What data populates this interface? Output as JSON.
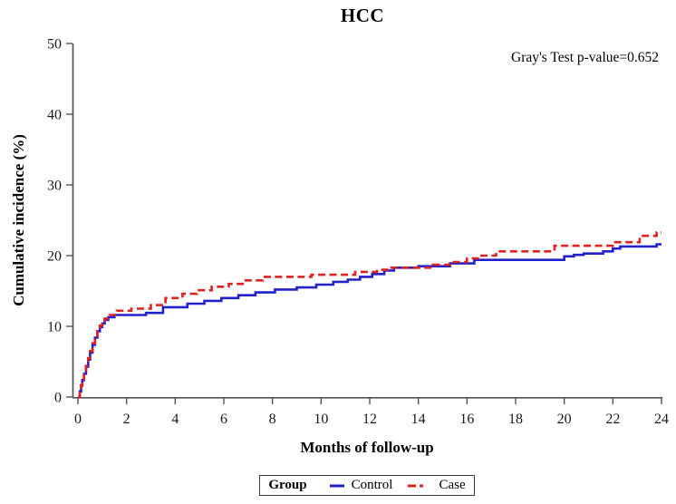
{
  "chart": {
    "title": "HCC",
    "annotation": "Gray's Test p-value=0.652"
  },
  "legend": {
    "title": "Group",
    "items": [
      "Control",
      "Case"
    ]
  },
  "chart_data": {
    "type": "line",
    "subtype": "step-function-cumulative-incidence",
    "title": "HCC",
    "xlabel": "Months of follow-up",
    "ylabel": "Cumulative incidence (%)",
    "xlim": [
      0,
      24
    ],
    "ylim": [
      0,
      50
    ],
    "xticks": [
      0,
      2,
      4,
      6,
      8,
      10,
      12,
      14,
      16,
      18,
      20,
      22,
      24
    ],
    "yticks": [
      0,
      10,
      20,
      30,
      40,
      50
    ],
    "grid": false,
    "annotation": "Gray's Test p-value=0.652",
    "legend_position": "bottom",
    "legend_title": "Group",
    "axis_color": "#555555",
    "series": [
      {
        "name": "Control",
        "color": "#2222cc",
        "line_style": "solid",
        "points": [
          [
            0,
            0
          ],
          [
            0.08,
            0.8
          ],
          [
            0.13,
            1.6
          ],
          [
            0.18,
            2.4
          ],
          [
            0.25,
            3.3
          ],
          [
            0.33,
            4.3
          ],
          [
            0.42,
            5.3
          ],
          [
            0.5,
            6.3
          ],
          [
            0.6,
            7.4
          ],
          [
            0.7,
            8.4
          ],
          [
            0.8,
            9.3
          ],
          [
            0.9,
            9.9
          ],
          [
            1.0,
            10.4
          ],
          [
            1.1,
            10.9
          ],
          [
            1.25,
            11.3
          ],
          [
            1.5,
            11.6
          ],
          [
            2.8,
            11.9
          ],
          [
            3.5,
            12.7
          ],
          [
            4.5,
            13.2
          ],
          [
            5.2,
            13.6
          ],
          [
            5.9,
            14.0
          ],
          [
            6.6,
            14.4
          ],
          [
            7.3,
            14.8
          ],
          [
            8.1,
            15.2
          ],
          [
            9.0,
            15.5
          ],
          [
            9.8,
            15.9
          ],
          [
            10.5,
            16.3
          ],
          [
            11.1,
            16.6
          ],
          [
            11.6,
            17.0
          ],
          [
            12.1,
            17.4
          ],
          [
            12.6,
            17.9
          ],
          [
            13.0,
            18.3
          ],
          [
            14.0,
            18.5
          ],
          [
            15.3,
            18.9
          ],
          [
            16.3,
            19.4
          ],
          [
            20.0,
            19.9
          ],
          [
            20.4,
            20.1
          ],
          [
            20.8,
            20.3
          ],
          [
            21.6,
            20.6
          ],
          [
            22.0,
            21.0
          ],
          [
            22.3,
            21.3
          ],
          [
            23.8,
            21.6
          ],
          [
            24,
            21.6
          ]
        ]
      },
      {
        "name": "Case",
        "color": "#dd2222",
        "line_style": "dashed",
        "points": [
          [
            0,
            0
          ],
          [
            0.08,
            0.9
          ],
          [
            0.13,
            1.7
          ],
          [
            0.18,
            2.5
          ],
          [
            0.25,
            3.4
          ],
          [
            0.33,
            4.4
          ],
          [
            0.42,
            5.5
          ],
          [
            0.5,
            6.5
          ],
          [
            0.6,
            7.6
          ],
          [
            0.7,
            8.6
          ],
          [
            0.8,
            9.5
          ],
          [
            0.9,
            10.1
          ],
          [
            1.0,
            10.6
          ],
          [
            1.1,
            11.1
          ],
          [
            1.3,
            11.6
          ],
          [
            1.6,
            12.2
          ],
          [
            2.2,
            12.5
          ],
          [
            3.0,
            13.0
          ],
          [
            3.6,
            14.0
          ],
          [
            4.3,
            14.6
          ],
          [
            4.9,
            15.1
          ],
          [
            5.5,
            15.6
          ],
          [
            6.2,
            16.0
          ],
          [
            6.9,
            16.5
          ],
          [
            7.6,
            17.0
          ],
          [
            9.6,
            17.3
          ],
          [
            11.4,
            17.7
          ],
          [
            12.3,
            18.0
          ],
          [
            12.8,
            18.3
          ],
          [
            14.6,
            18.7
          ],
          [
            15.3,
            19.1
          ],
          [
            16.0,
            19.6
          ],
          [
            16.6,
            20.0
          ],
          [
            17.2,
            20.6
          ],
          [
            19.6,
            21.4
          ],
          [
            22.0,
            21.9
          ],
          [
            23.1,
            22.8
          ],
          [
            23.8,
            23.3
          ],
          [
            24,
            23.3
          ]
        ]
      }
    ]
  }
}
